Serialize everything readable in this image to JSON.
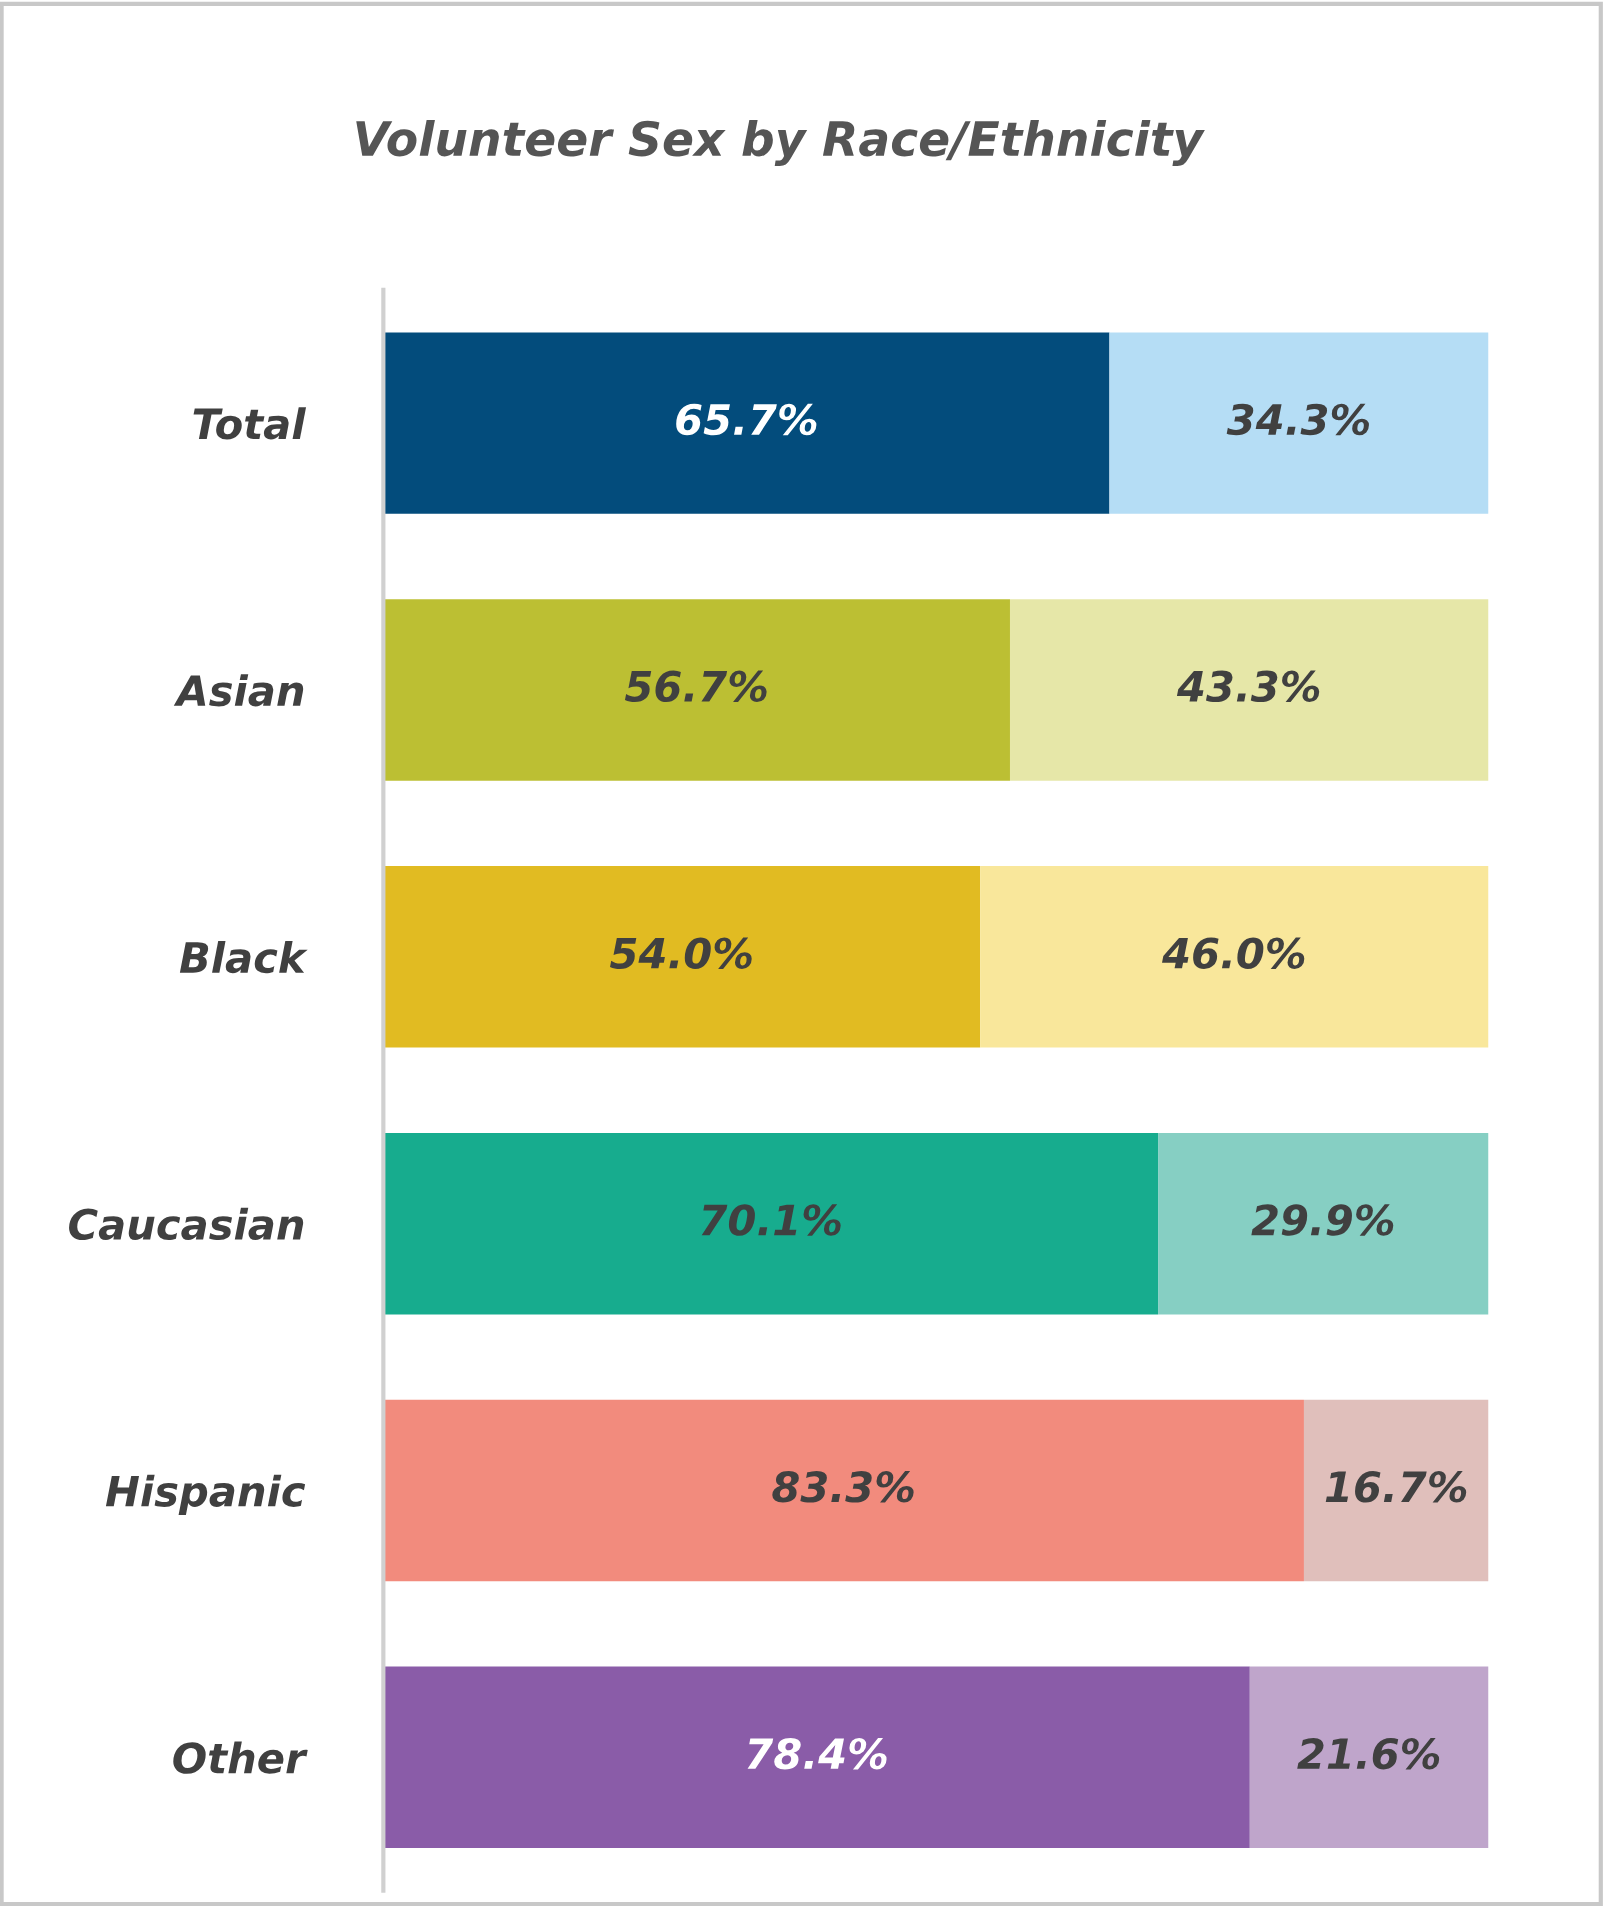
{
  "chart_data": {
    "type": "bar",
    "title": "Volunteer Sex by Race/Ethnicity",
    "orientation": "horizontal",
    "stacked": true,
    "xlim": [
      0,
      100
    ],
    "tick_labels": "y",
    "grid": false,
    "legend": false,
    "categories": [
      "Total",
      "Asian",
      "Black",
      "Caucasian",
      "Hispanic",
      "Other"
    ],
    "series": [
      {
        "colors": [
          "#034c7c",
          "#bcbf33",
          "#e1bb22",
          "#17ac8e",
          "#f28b7d",
          "#8a5ca8"
        ],
        "values": [
          65.7,
          56.7,
          54.0,
          70.1,
          83.3,
          78.4
        ],
        "value_labels": [
          "65.7%",
          "56.7%",
          "54.0%",
          "70.1%",
          "83.3%",
          "78.4%"
        ]
      },
      {
        "colors": [
          "#b5ddf5",
          "#e6e7a8",
          "#f9e79b",
          "#86cfc3",
          "#e0bfbb",
          "#bfa5cb"
        ],
        "values": [
          34.3,
          43.3,
          46.0,
          29.9,
          16.7,
          21.6
        ],
        "value_labels": [
          "34.3%",
          "43.3%",
          "46.0%",
          "29.9%",
          "16.7%",
          "21.6%"
        ]
      }
    ]
  }
}
